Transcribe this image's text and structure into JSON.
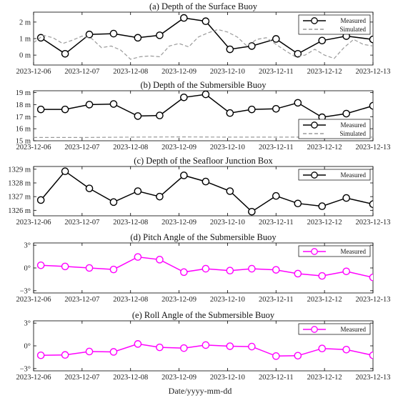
{
  "colors": {
    "measured": "#000000",
    "simulated": "#9a9a9a",
    "angle": "#ff00ff",
    "axis": "#000000"
  },
  "xlabel": "Date/yyyy-mm-dd",
  "chart_data": [
    {
      "type": "line",
      "title": "(a) Depth of the Surface Buoy",
      "unit": "m",
      "yticks": [
        0,
        1,
        2
      ],
      "yticklabels": [
        "0 m",
        "1 m",
        "2 m"
      ],
      "ylim": [
        -0.6,
        2.6
      ],
      "xlim": [
        0,
        7
      ],
      "xticks": [
        "2023-12-06",
        "2023-12-07",
        "2023-12-08",
        "2023-12-09",
        "2023-12-10",
        "2023-12-11",
        "2023-12-12",
        "2023-12-13"
      ],
      "legend": "top-right",
      "series": [
        {
          "name": "Measured",
          "style": "measured",
          "x": [
            0.15,
            0.65,
            1.15,
            1.65,
            2.15,
            2.6,
            3.1,
            3.55,
            4.05,
            4.5,
            5.0,
            5.45,
            5.95,
            6.45,
            7.0
          ],
          "y": [
            1.05,
            0.08,
            1.25,
            1.3,
            1.05,
            1.2,
            2.25,
            2.05,
            0.35,
            0.55,
            0.98,
            0.08,
            0.88,
            1.15,
            0.95
          ]
        },
        {
          "name": "Simulated",
          "style": "simulated",
          "x": [
            0,
            0.2,
            0.4,
            0.6,
            0.8,
            1.0,
            1.2,
            1.4,
            1.6,
            1.8,
            2.0,
            2.2,
            2.4,
            2.6,
            2.8,
            3.0,
            3.2,
            3.4,
            3.6,
            3.8,
            4.0,
            4.2,
            4.4,
            4.6,
            4.8,
            5.0,
            5.2,
            5.4,
            5.6,
            5.8,
            6.0,
            6.2,
            6.4,
            6.6,
            6.8,
            7.0
          ],
          "y": [
            0.75,
            1.2,
            1.05,
            0.7,
            0.9,
            1.15,
            1.0,
            0.45,
            0.55,
            0.3,
            -0.25,
            -0.1,
            -0.05,
            -0.1,
            0.55,
            0.7,
            0.5,
            1.1,
            1.35,
            1.55,
            1.4,
            1.1,
            0.55,
            0.95,
            1.05,
            0.65,
            0.25,
            -0.1,
            0.0,
            0.35,
            0.0,
            -0.2,
            0.45,
            0.95,
            0.65,
            0.55
          ]
        }
      ]
    },
    {
      "type": "line",
      "title": "(b) Depth of the Submersible Buoy",
      "unit": "m",
      "yticks": [
        15,
        16,
        17,
        18,
        19
      ],
      "yticklabels": [
        "15 m",
        "16 m",
        "17 m",
        "18 m",
        "19 m"
      ],
      "ylim": [
        15,
        19.15
      ],
      "xlim": [
        0,
        7
      ],
      "xticks": [
        "2023-12-06",
        "2023-12-07",
        "2023-12-08",
        "2023-12-09",
        "2023-12-10",
        "2023-12-11",
        "2023-12-12",
        "2023-12-13"
      ],
      "legend": "bottom-right",
      "series": [
        {
          "name": "Measured",
          "style": "measured",
          "x": [
            0.15,
            0.65,
            1.15,
            1.65,
            2.15,
            2.6,
            3.1,
            3.55,
            4.05,
            4.5,
            5.0,
            5.45,
            5.95,
            6.45,
            7.0
          ],
          "y": [
            17.6,
            17.6,
            18.0,
            18.05,
            17.05,
            17.1,
            18.6,
            18.85,
            17.3,
            17.6,
            17.65,
            18.15,
            16.95,
            17.25,
            17.9
          ]
        },
        {
          "name": "Simulated",
          "style": "simulated",
          "x": [
            0,
            1,
            2,
            3,
            4,
            5,
            6,
            7
          ],
          "y": [
            15.27,
            15.27,
            15.3,
            15.32,
            15.3,
            15.3,
            15.3,
            15.3
          ]
        }
      ]
    },
    {
      "type": "line",
      "title": "(c) Depth of the Seafloor Junction Box",
      "unit": "m",
      "yticks": [
        1326,
        1327,
        1328,
        1329
      ],
      "yticklabels": [
        "1326 m",
        "1327 m",
        "1328 m",
        "1329 m"
      ],
      "ylim": [
        1325.6,
        1329.2
      ],
      "xlim": [
        0,
        7
      ],
      "xticks": [
        "2023-12-06",
        "2023-12-07",
        "2023-12-08",
        "2023-12-09",
        "2023-12-10",
        "2023-12-11",
        "2023-12-12",
        "2023-12-13"
      ],
      "legend": "top-right",
      "series": [
        {
          "name": "Measured",
          "style": "measured",
          "x": [
            0.15,
            0.65,
            1.15,
            1.65,
            2.15,
            2.6,
            3.1,
            3.55,
            4.05,
            4.5,
            5.0,
            5.45,
            5.95,
            6.45,
            7.0
          ],
          "y": [
            1326.75,
            1328.85,
            1327.6,
            1326.6,
            1327.4,
            1327.0,
            1328.55,
            1328.1,
            1327.4,
            1325.9,
            1327.05,
            1326.5,
            1326.3,
            1326.9,
            1326.45
          ]
        }
      ]
    },
    {
      "type": "line",
      "title": "(d) Pitch Angle of the Submersible Buoy",
      "unit": "°",
      "yticks": [
        -3,
        0,
        3
      ],
      "yticklabels": [
        "−3°",
        "0°",
        "3°"
      ],
      "ylim": [
        -3.3,
        3.3
      ],
      "xlim": [
        0,
        7
      ],
      "xticks": [
        "2023-12-06",
        "2023-12-07",
        "2023-12-08",
        "2023-12-09",
        "2023-12-10",
        "2023-12-11",
        "2023-12-12",
        "2023-12-13"
      ],
      "legend": "top-right",
      "series": [
        {
          "name": "Measured",
          "style": "angle",
          "x": [
            0.15,
            0.65,
            1.15,
            1.65,
            2.15,
            2.6,
            3.1,
            3.55,
            4.05,
            4.5,
            5.0,
            5.45,
            5.95,
            6.45,
            7.0
          ],
          "y": [
            0.35,
            0.2,
            0.0,
            -0.2,
            1.45,
            1.1,
            -0.55,
            -0.1,
            -0.35,
            -0.1,
            -0.25,
            -0.75,
            -1.05,
            -0.45,
            -1.25
          ]
        }
      ]
    },
    {
      "type": "line",
      "title": "(e) Roll Angle of the Submersible Buoy",
      "unit": "°",
      "yticks": [
        -3,
        0,
        3
      ],
      "yticklabels": [
        "−3°",
        "0°",
        "3°"
      ],
      "ylim": [
        -3.3,
        3.3
      ],
      "xlim": [
        0,
        7
      ],
      "xticks": [
        "2023-12-06",
        "2023-12-07",
        "2023-12-08",
        "2023-12-09",
        "2023-12-10",
        "2023-12-11",
        "2023-12-12",
        "2023-12-13"
      ],
      "legend": "top-right",
      "series": [
        {
          "name": "Measured",
          "style": "angle",
          "x": [
            0.15,
            0.65,
            1.15,
            1.65,
            2.15,
            2.6,
            3.1,
            3.55,
            4.05,
            4.5,
            5.0,
            5.45,
            5.95,
            6.45,
            7.0
          ],
          "y": [
            -1.25,
            -1.2,
            -0.75,
            -0.8,
            0.25,
            -0.2,
            -0.3,
            0.1,
            -0.05,
            -0.1,
            -1.35,
            -1.3,
            -0.35,
            -0.5,
            -1.25
          ]
        }
      ]
    }
  ]
}
